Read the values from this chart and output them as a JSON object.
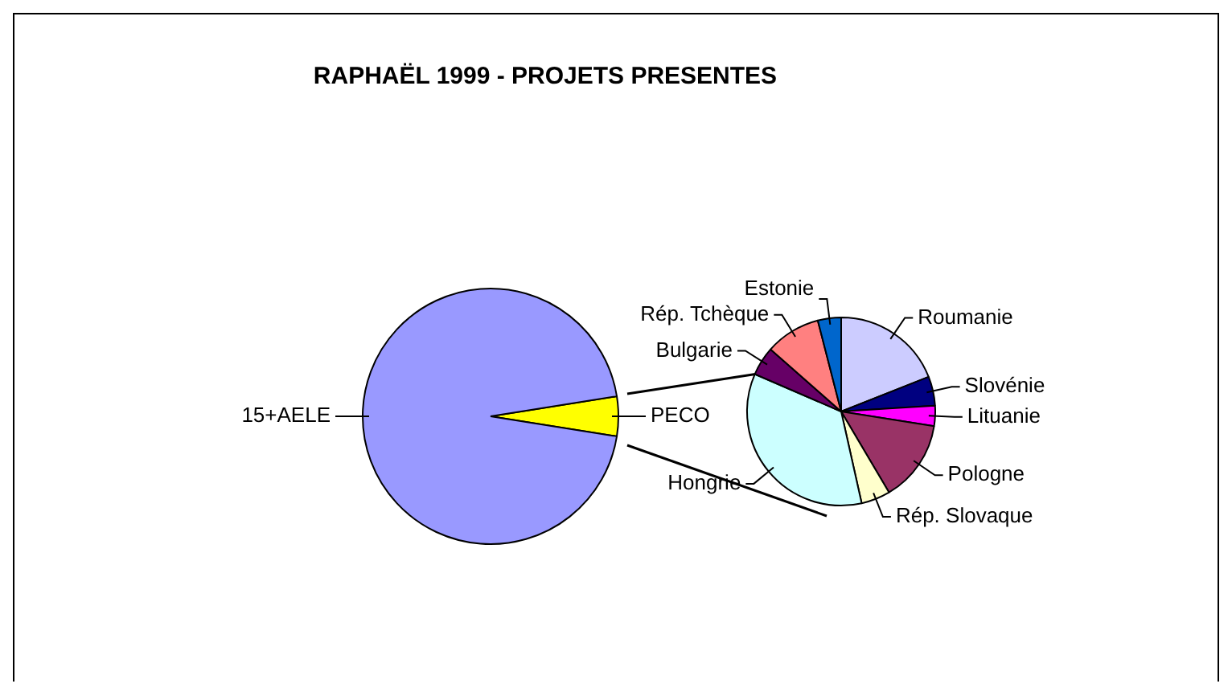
{
  "chart_data": [
    {
      "type": "pie",
      "title": "RAPHAËL 1999 - PROJETS PRESENTES",
      "categories": [
        "PECO",
        "15+AELE"
      ],
      "values": [
        5,
        95
      ],
      "colors": [
        "#ffff00",
        "#9999ff"
      ]
    },
    {
      "type": "pie",
      "categories": [
        "Roumanie",
        "Slovénie",
        "Lituanie",
        "Pologne",
        "Rép. Slovaque",
        "Hongrie",
        "Bulgarie",
        "Rép. Tchèque",
        "Estonie"
      ],
      "values": [
        19,
        5,
        3.5,
        14,
        5,
        35,
        5,
        9.5,
        4
      ],
      "colors": [
        "#ccccff",
        "#000080",
        "#ff00ff",
        "#993366",
        "#ffffcc",
        "#ccffff",
        "#660066",
        "#ff8080",
        "#0066cc"
      ]
    }
  ]
}
